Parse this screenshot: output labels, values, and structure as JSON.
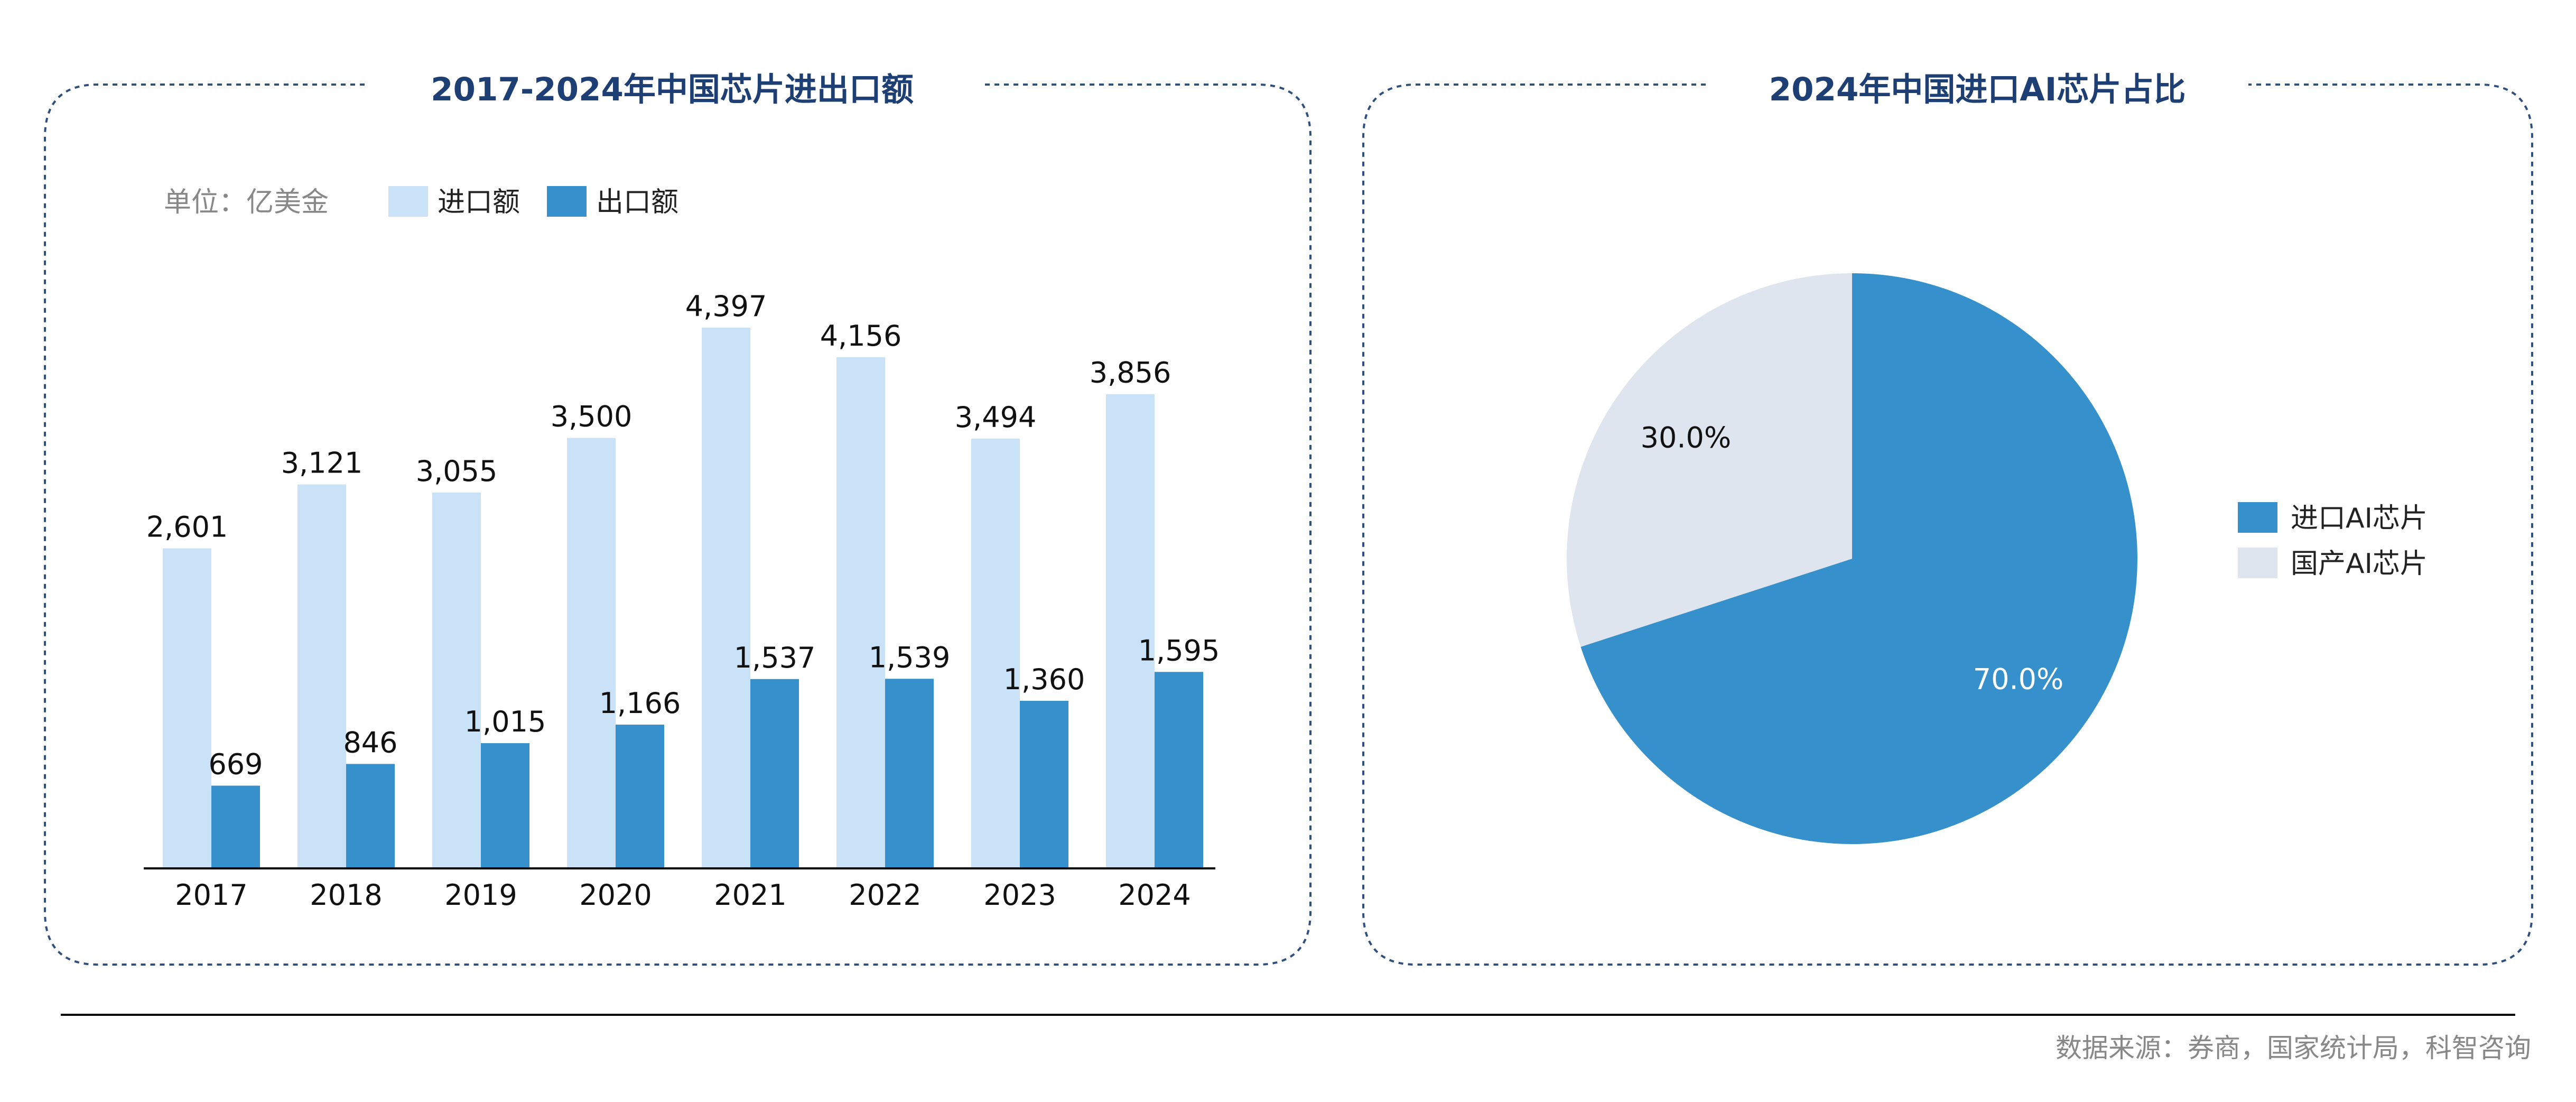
{
  "colors": {
    "import": "#C9E2F8",
    "export": "#3590CC",
    "domestic": "#DFE5EE",
    "title": "#1E3F73",
    "border": "#2F4F7E"
  },
  "left_panel": {
    "title": "2017-2024年中国芯片进出口额",
    "unit": "单位：亿美金"
  },
  "right_panel": {
    "title": "2024年中国进口AI芯片占比"
  },
  "footer": {
    "source": "数据来源：券商，国家统计局，科智咨询"
  },
  "chart_data": [
    {
      "type": "bar",
      "title": "2017-2024年中国芯片进出口额",
      "unit": "单位：亿美金",
      "categories": [
        "2017",
        "2018",
        "2019",
        "2020",
        "2021",
        "2022",
        "2023",
        "2024"
      ],
      "series": [
        {
          "name": "进口额",
          "values": [
            2601,
            3121,
            3055,
            3500,
            4397,
            4156,
            3494,
            3856
          ],
          "labels": [
            "2,601",
            "3,121",
            "3,055",
            "3,500",
            "4,397",
            "4,156",
            "3,494",
            "3,856"
          ]
        },
        {
          "name": "出口额",
          "values": [
            669,
            846,
            1015,
            1166,
            1537,
            1539,
            1360,
            1595
          ],
          "labels": [
            "669",
            "846",
            "1,015",
            "1,166",
            "1,537",
            "1,539",
            "1,360",
            "1,595"
          ]
        }
      ],
      "ylim": [
        0,
        4397
      ],
      "grid": false,
      "legend": "top-left"
    },
    {
      "type": "pie",
      "title": "2024年中国进口AI芯片占比",
      "slices": [
        {
          "name": "进口AI芯片",
          "value": 70.0,
          "label": "70.0%"
        },
        {
          "name": "国产AI芯片",
          "value": 30.0,
          "label": "30.0%"
        }
      ],
      "legend": "right"
    }
  ]
}
